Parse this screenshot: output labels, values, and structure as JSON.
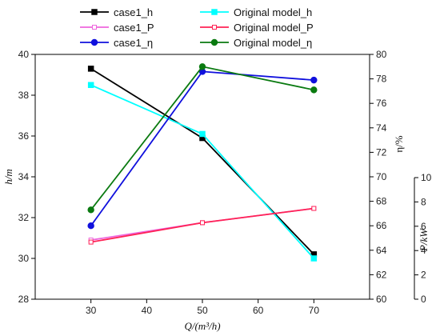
{
  "chart_data": {
    "type": "line",
    "x": [
      30,
      50,
      70
    ],
    "xlabel": "Q/(m³/h)",
    "xlim": [
      20,
      80
    ],
    "xticks": [
      "30",
      "40",
      "50",
      "60",
      "70"
    ],
    "axes": {
      "left": {
        "label": "h/m",
        "ylim": [
          28,
          40
        ],
        "ticks": [
          "28",
          "30",
          "32",
          "34",
          "36",
          "38",
          "40"
        ]
      },
      "right_inner": {
        "label": "η/%",
        "ylim": [
          60,
          80
        ],
        "ticks": [
          "60",
          "62",
          "64",
          "66",
          "68",
          "70",
          "72",
          "74",
          "76",
          "78",
          "80"
        ]
      },
      "right_outer": {
        "label": "P/kW",
        "ylim": [
          0,
          10
        ],
        "ticks": [
          "0",
          "2",
          "4",
          "6",
          "8",
          "10"
        ]
      }
    },
    "series": [
      {
        "name": "case1_h",
        "axis": "left",
        "values": [
          39.3,
          35.9,
          30.2
        ],
        "color": "#000000",
        "marker": "square",
        "filled": true
      },
      {
        "name": "Original model_h",
        "axis": "left",
        "values": [
          38.5,
          36.1,
          30.0
        ],
        "color": "#00ffff",
        "marker": "square",
        "filled": true
      },
      {
        "name": "case1_P",
        "axis": "left",
        "values": [
          30.9,
          31.75,
          32.45
        ],
        "color": "#ee66dd",
        "marker": "square",
        "filled": false
      },
      {
        "name": "Original model_P",
        "axis": "left",
        "values": [
          30.8,
          31.75,
          32.45
        ],
        "color": "#ff2255",
        "marker": "square",
        "filled": false
      },
      {
        "name": "case1_η",
        "axis": "right_inner",
        "values": [
          66.0,
          78.6,
          77.9
        ],
        "color": "#1010dd",
        "marker": "circle",
        "filled": true
      },
      {
        "name": "Original model_η",
        "axis": "right_inner",
        "values": [
          67.3,
          79.0,
          77.1
        ],
        "color": "#0a7a10",
        "marker": "circle",
        "filled": true
      }
    ],
    "legend_position": "top",
    "grid": false
  }
}
